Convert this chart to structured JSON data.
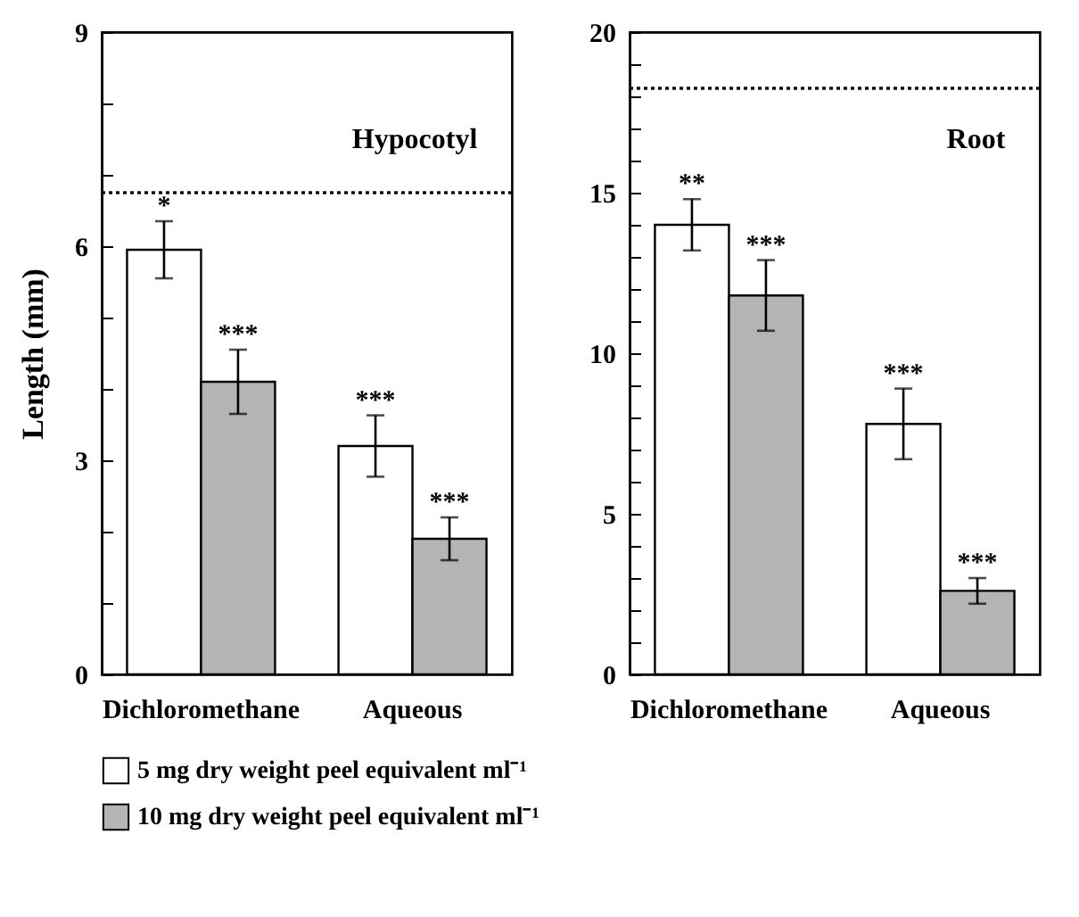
{
  "chart_data": [
    {
      "type": "bar",
      "title": "Hypocotyl",
      "ylabel": "Length  (mm)",
      "categories": [
        "Dichloromethane",
        "Aqueous"
      ],
      "series": [
        {
          "name": "5 mg dry weight peel equivalent ml⁻¹",
          "color": "#ffffff",
          "values": [
            5.95,
            3.2
          ],
          "errors": [
            0.4,
            0.43
          ],
          "value_labels": [
            "*",
            "***"
          ]
        },
        {
          "name": "10 mg dry weight peel equivalent ml⁻¹",
          "color": "#b4b4b4",
          "values": [
            4.1,
            1.9
          ],
          "errors": [
            0.45,
            0.3
          ],
          "value_labels": [
            "***",
            "***"
          ]
        }
      ],
      "ylim": [
        0,
        9
      ],
      "yticks": [
        0,
        {
          "value": 1,
          "label": null
        },
        {
          "value": 2,
          "label": null
        },
        3,
        {
          "value": 4,
          "label": null
        },
        {
          "value": 5,
          "label": null
        },
        6,
        {
          "value": 7,
          "label": null
        },
        {
          "value": 8,
          "label": null
        },
        9
      ],
      "ref_lines": [
        {
          "axis": "y",
          "value": 6.75,
          "label": null,
          "color": "#000000",
          "line_style": "dotted"
        }
      ],
      "legend": "bottom",
      "grid": false
    },
    {
      "type": "bar",
      "title": "Root",
      "categories": [
        "Dichloromethane",
        "Aqueous"
      ],
      "series": [
        {
          "name": "5 mg dry weight peel equivalent ml⁻¹",
          "color": "#ffffff",
          "values": [
            14,
            7.8
          ],
          "errors": [
            0.8,
            1.1
          ],
          "value_labels": [
            "**",
            "***"
          ]
        },
        {
          "name": "10 mg dry weight peel equivalent ml⁻¹",
          "color": "#b4b4b4",
          "values": [
            11.8,
            2.6
          ],
          "errors": [
            1.1,
            0.4
          ],
          "value_labels": [
            "***",
            "***"
          ]
        }
      ],
      "ylim": [
        0,
        20
      ],
      "yticks": [
        0,
        {
          "value": 1,
          "label": null
        },
        {
          "value": 2,
          "label": null
        },
        {
          "value": 3,
          "label": null
        },
        {
          "value": 4,
          "label": null
        },
        5,
        {
          "value": 6,
          "label": null
        },
        {
          "value": 7,
          "label": null
        },
        {
          "value": 8,
          "label": null
        },
        {
          "value": 9,
          "label": null
        },
        10,
        {
          "value": 11,
          "label": null
        },
        {
          "value": 12,
          "label": null
        },
        {
          "value": 13,
          "label": null
        },
        {
          "value": 14,
          "label": null
        },
        15,
        {
          "value": 16,
          "label": null
        },
        {
          "value": 17,
          "label": null
        },
        {
          "value": 18,
          "label": null
        },
        {
          "value": 19,
          "label": null
        },
        20
      ],
      "ref_lines": [
        {
          "axis": "y",
          "value": 18.25,
          "label": null,
          "color": "#000000",
          "line_style": "dotted"
        }
      ],
      "legend": "bottom",
      "grid": false
    }
  ]
}
